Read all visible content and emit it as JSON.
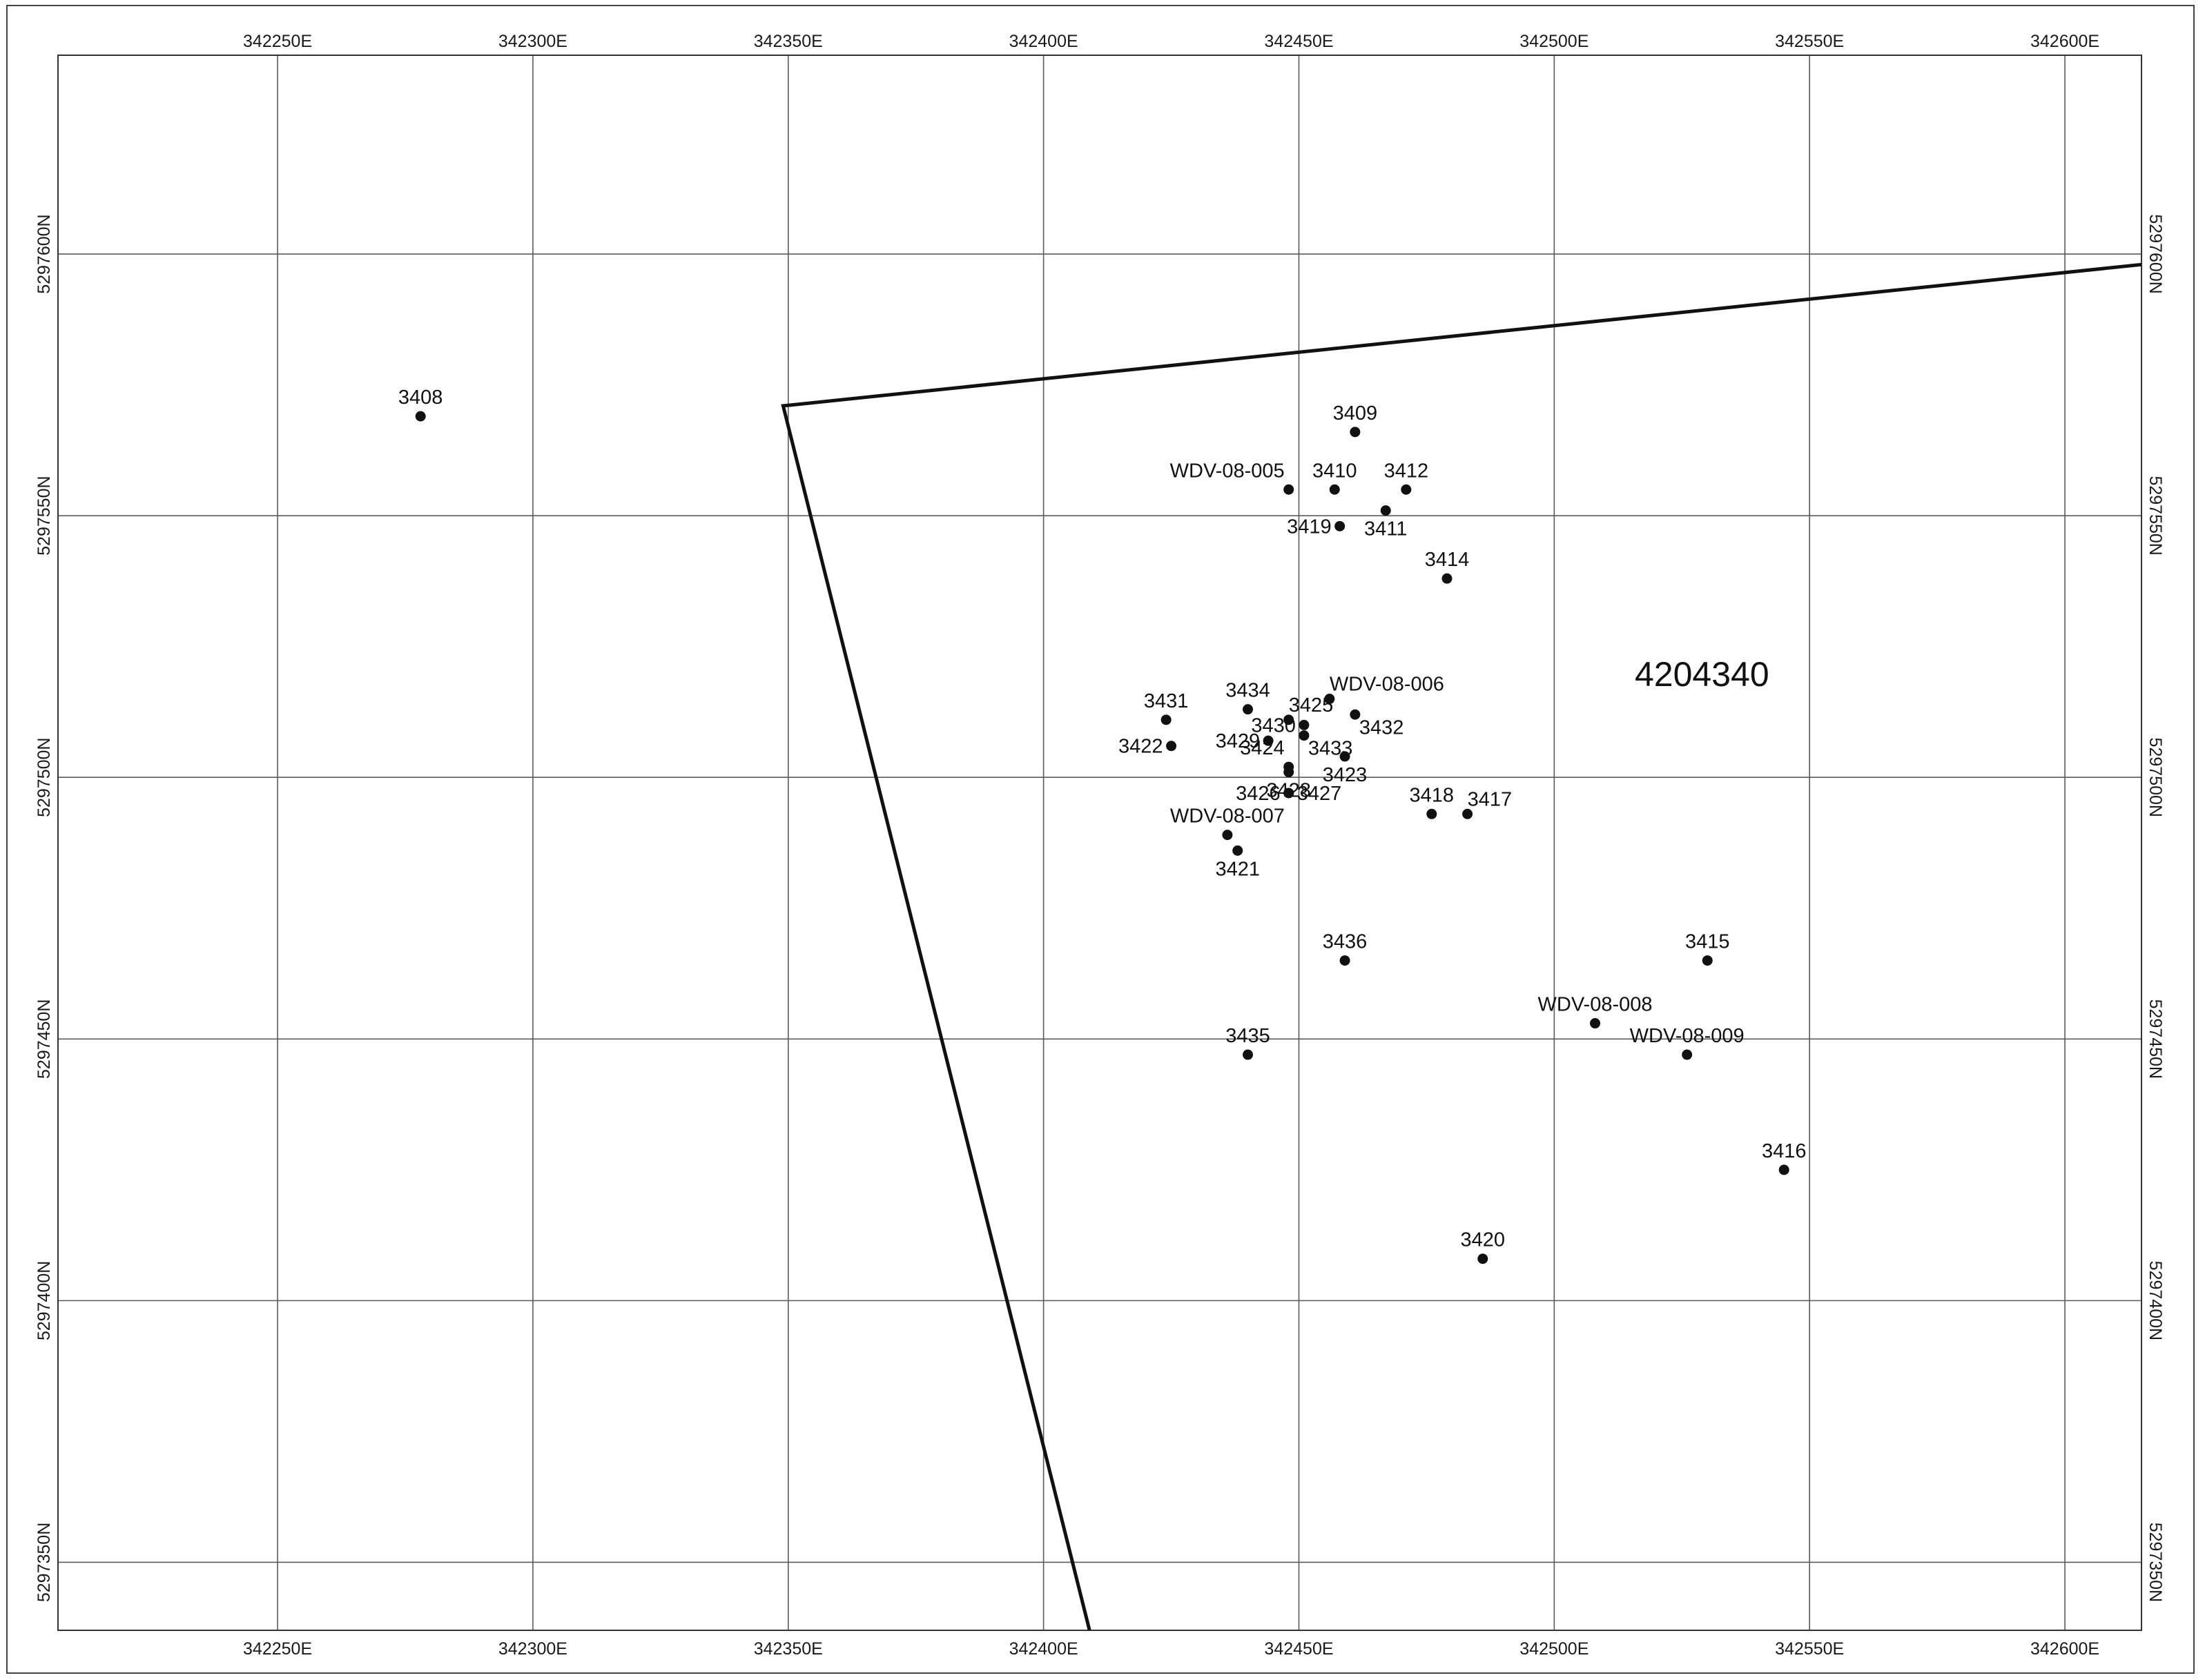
{
  "map": {
    "claim_label": "4204340",
    "easting_ticks": [
      {
        "value": 342250,
        "label": "342250E"
      },
      {
        "value": 342300,
        "label": "342300E"
      },
      {
        "value": 342350,
        "label": "342350E"
      },
      {
        "value": 342400,
        "label": "342400E"
      },
      {
        "value": 342450,
        "label": "342450E"
      },
      {
        "value": 342500,
        "label": "342500E"
      },
      {
        "value": 342550,
        "label": "342550E"
      },
      {
        "value": 342600,
        "label": "342600E"
      }
    ],
    "northing_ticks": [
      {
        "value": 5297600,
        "label": "5297600N"
      },
      {
        "value": 5297550,
        "label": "5297550N"
      },
      {
        "value": 5297500,
        "label": "5297500N"
      },
      {
        "value": 5297450,
        "label": "5297450N"
      },
      {
        "value": 5297400,
        "label": "5297400N"
      },
      {
        "value": 5297350,
        "label": "5297350N"
      }
    ],
    "extent": {
      "easting_min": 342207,
      "easting_max": 342615,
      "northing_min": 5297337,
      "northing_max": 5297638
    },
    "claim_boundary": [
      {
        "e": 342349,
        "n": 5297571
      },
      {
        "e": 342615,
        "n": 5297598
      },
      {
        "e": 342615,
        "n": 5297337
      },
      {
        "e": 342409,
        "n": 5297337
      }
    ],
    "points": [
      {
        "id": "3408",
        "e": 342278,
        "n": 5297569,
        "label_side": "above"
      },
      {
        "id": "3409",
        "e": 342461,
        "n": 5297566,
        "label_side": "above"
      },
      {
        "id": "WDV-08-005",
        "e": 342448,
        "n": 5297555,
        "label_side": "above-left"
      },
      {
        "id": "3410",
        "e": 342457,
        "n": 5297555,
        "label_side": "above"
      },
      {
        "id": "3412",
        "e": 342471,
        "n": 5297555,
        "label_side": "above"
      },
      {
        "id": "3411",
        "e": 342467,
        "n": 5297551,
        "label_side": "below"
      },
      {
        "id": "3419",
        "e": 342458,
        "n": 5297548,
        "label_side": "left"
      },
      {
        "id": "3414",
        "e": 342479,
        "n": 5297538,
        "label_side": "above"
      },
      {
        "id": "WDV-08-006",
        "e": 342456,
        "n": 5297515,
        "label_side": "above-right"
      },
      {
        "id": "3434",
        "e": 342440,
        "n": 5297513,
        "label_side": "above"
      },
      {
        "id": "3425",
        "e": 342448,
        "n": 5297511,
        "label_side": "above-right"
      },
      {
        "id": "3432",
        "e": 342461,
        "n": 5297512,
        "label_side": "below-right"
      },
      {
        "id": "3431",
        "e": 342424,
        "n": 5297511,
        "label_side": "above"
      },
      {
        "id": "3430",
        "e": 342451,
        "n": 5297510,
        "label_side": "left"
      },
      {
        "id": "3433",
        "e": 342451,
        "n": 5297508,
        "label_side": "below-right"
      },
      {
        "id": "3429",
        "e": 342444,
        "n": 5297507,
        "label_side": "left"
      },
      {
        "id": "3422",
        "e": 342425,
        "n": 5297506,
        "label_side": "left"
      },
      {
        "id": "3424",
        "e": 342448,
        "n": 5297502,
        "label_side": "above-left"
      },
      {
        "id": "3423",
        "e": 342459,
        "n": 5297504,
        "label_side": "below"
      },
      {
        "id": "3428",
        "e": 342448,
        "n": 5297501,
        "label_side": "below"
      },
      {
        "id": "3426",
        "e": 342448,
        "n": 5297497,
        "label_side": "left"
      },
      {
        "id": "3427",
        "e": 342448,
        "n": 5297497,
        "label_side": "right"
      },
      {
        "id": "3418",
        "e": 342476,
        "n": 5297493,
        "label_side": "above"
      },
      {
        "id": "3417",
        "e": 342483,
        "n": 5297493,
        "label_side": "above-right"
      },
      {
        "id": "WDV-08-007",
        "e": 342436,
        "n": 5297489,
        "label_side": "above"
      },
      {
        "id": "3421",
        "e": 342438,
        "n": 5297486,
        "label_side": "below"
      },
      {
        "id": "3436",
        "e": 342459,
        "n": 5297465,
        "label_side": "above"
      },
      {
        "id": "3415",
        "e": 342530,
        "n": 5297465,
        "label_side": "above"
      },
      {
        "id": "WDV-08-008",
        "e": 342508,
        "n": 5297453,
        "label_side": "above"
      },
      {
        "id": "WDV-08-009",
        "e": 342526,
        "n": 5297447,
        "label_side": "above"
      },
      {
        "id": "3435",
        "e": 342440,
        "n": 5297447,
        "label_side": "above"
      },
      {
        "id": "3416",
        "e": 342545,
        "n": 5297425,
        "label_side": "above"
      },
      {
        "id": "3420",
        "e": 342486,
        "n": 5297408,
        "label_side": "above"
      }
    ]
  }
}
